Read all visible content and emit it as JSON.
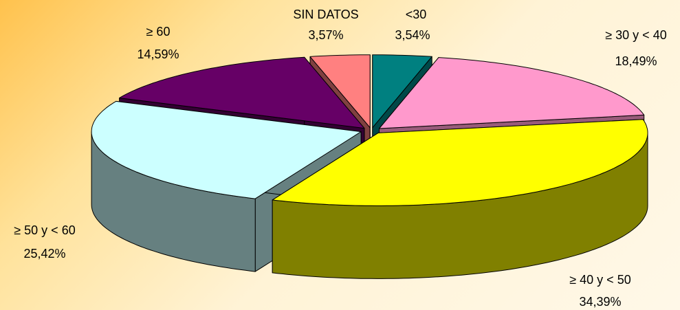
{
  "chart_data": {
    "type": "pie3d",
    "categories": [
      "<30",
      "≥ 30 y < 40",
      "≥ 40 y < 50",
      "≥ 50 y < 60",
      "≥ 60",
      "SIN DATOS"
    ],
    "values": [
      3.54,
      18.49,
      34.39,
      25.42,
      14.59,
      3.57
    ],
    "value_labels": [
      "3,54%",
      "18,49%",
      "34,39%",
      "25,42%",
      "14,59%",
      "3,57%"
    ],
    "colors": [
      "#008080",
      "#ff99cc",
      "#ffff00",
      "#ccffff",
      "#660066",
      "#ff8080"
    ],
    "side_colors": [
      "#004848",
      "#995c7a",
      "#808000",
      "#668080",
      "#330033",
      "#804040"
    ]
  }
}
